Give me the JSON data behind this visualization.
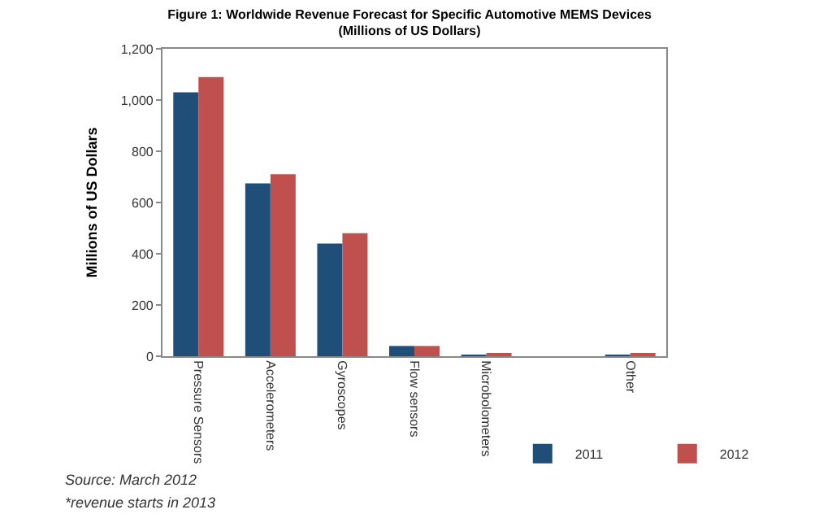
{
  "chart_data": {
    "type": "bar",
    "title": "Figure 1: Worldwide Revenue Forecast for Specific Automotive MEMS Devices\n(Millions of US Dollars)",
    "ylabel": "Millions of US Dollars",
    "categories": [
      "Pressure Sensors",
      "Accelerometers",
      "Gyroscopes",
      "Flow sensors",
      "Microbolometers",
      null,
      "Other"
    ],
    "series": [
      {
        "name": "2011",
        "color": "#1f4e79",
        "values": [
          1030,
          675,
          440,
          40,
          5,
          0,
          5
        ]
      },
      {
        "name": "2012",
        "color": "#c0504d",
        "values": [
          1090,
          710,
          480,
          40,
          12,
          0,
          12
        ]
      }
    ],
    "ylim": [
      0,
      1200
    ],
    "yticks": [
      0,
      200,
      400,
      600,
      800,
      {
        "value": 1000,
        "label": "1,000"
      },
      {
        "value": 1200,
        "label": "1,200"
      }
    ],
    "grid": false,
    "legend": "bottom right",
    "annotations": [
      "Source: March 2012",
      "*revenue starts in 2013"
    ]
  }
}
